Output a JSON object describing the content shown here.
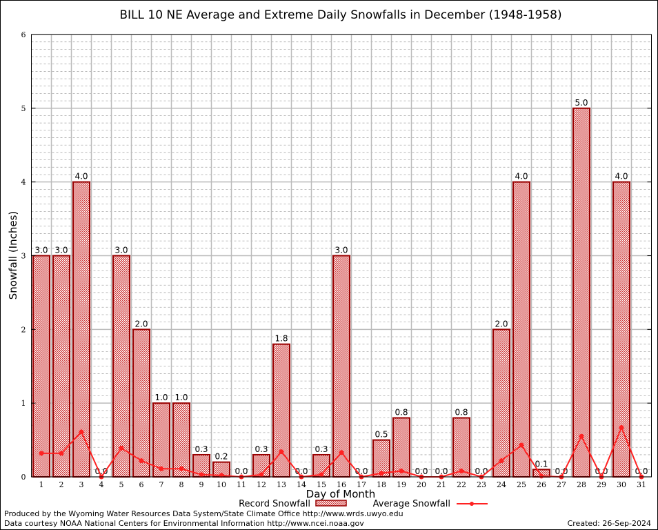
{
  "chart_data": {
    "type": "bar",
    "title": "BILL 10 NE Average and Extreme Daily Snowfalls in December (1948-1958)",
    "xlabel": "Day of Month",
    "ylabel": "Snowfall (Inches)",
    "ylim": [
      0,
      6
    ],
    "yticks": [
      "0",
      "1",
      "2",
      "3",
      "4",
      "5",
      "6"
    ],
    "categories": [
      "1",
      "2",
      "3",
      "4",
      "5",
      "6",
      "7",
      "8",
      "9",
      "10",
      "11",
      "12",
      "13",
      "14",
      "15",
      "16",
      "17",
      "18",
      "19",
      "20",
      "21",
      "22",
      "23",
      "24",
      "25",
      "26",
      "27",
      "28",
      "29",
      "30",
      "31"
    ],
    "series": [
      {
        "name": "Record Snowfall",
        "type": "bar",
        "values": [
          3.0,
          3.0,
          4.0,
          0.0,
          3.0,
          2.0,
          1.0,
          1.0,
          0.3,
          0.2,
          0.0,
          0.3,
          1.8,
          0.0,
          0.3,
          3.0,
          0.0,
          0.5,
          0.8,
          0.0,
          0.0,
          0.8,
          0.0,
          2.0,
          4.0,
          0.1,
          0.0,
          5.0,
          0.0,
          4.0,
          0.0
        ],
        "labels": [
          "3.0",
          "3.0",
          "4.0",
          "0.0",
          "3.0",
          "2.0",
          "1.0",
          "1.0",
          "0.3",
          "0.2",
          "0.0",
          "0.3",
          "1.8",
          "0.0",
          "0.3",
          "3.0",
          "0.0",
          "0.5",
          "0.8",
          "0.0",
          "0.0",
          "0.8",
          "0.0",
          "2.0",
          "4.0",
          "0.1",
          "0.0",
          "5.0",
          "0.0",
          "4.0",
          "0.0"
        ]
      },
      {
        "name": "Average Snowfall",
        "type": "line",
        "values": [
          0.32,
          0.32,
          0.61,
          0.0,
          0.39,
          0.22,
          0.11,
          0.11,
          0.03,
          0.02,
          0.0,
          0.03,
          0.34,
          0.0,
          0.03,
          0.33,
          0.0,
          0.05,
          0.08,
          0.0,
          0.0,
          0.08,
          0.0,
          0.22,
          0.43,
          0.01,
          0.0,
          0.55,
          0.0,
          0.67,
          0.0
        ]
      }
    ],
    "grid": true,
    "legend": "bottom-center",
    "colors": {
      "bar_stroke": "#990000",
      "bar_fill": "#cc3333",
      "line": "#ff2222"
    }
  },
  "footer": {
    "line1": "Produced by the Wyoming Water Resources Data System/State Climate Office http://www.wrds.uwyo.edu",
    "line2": "Data courtesy NOAA National Centers for Environmental Information http://www.ncei.noaa.gov",
    "created": "Created: 26-Sep-2024"
  }
}
